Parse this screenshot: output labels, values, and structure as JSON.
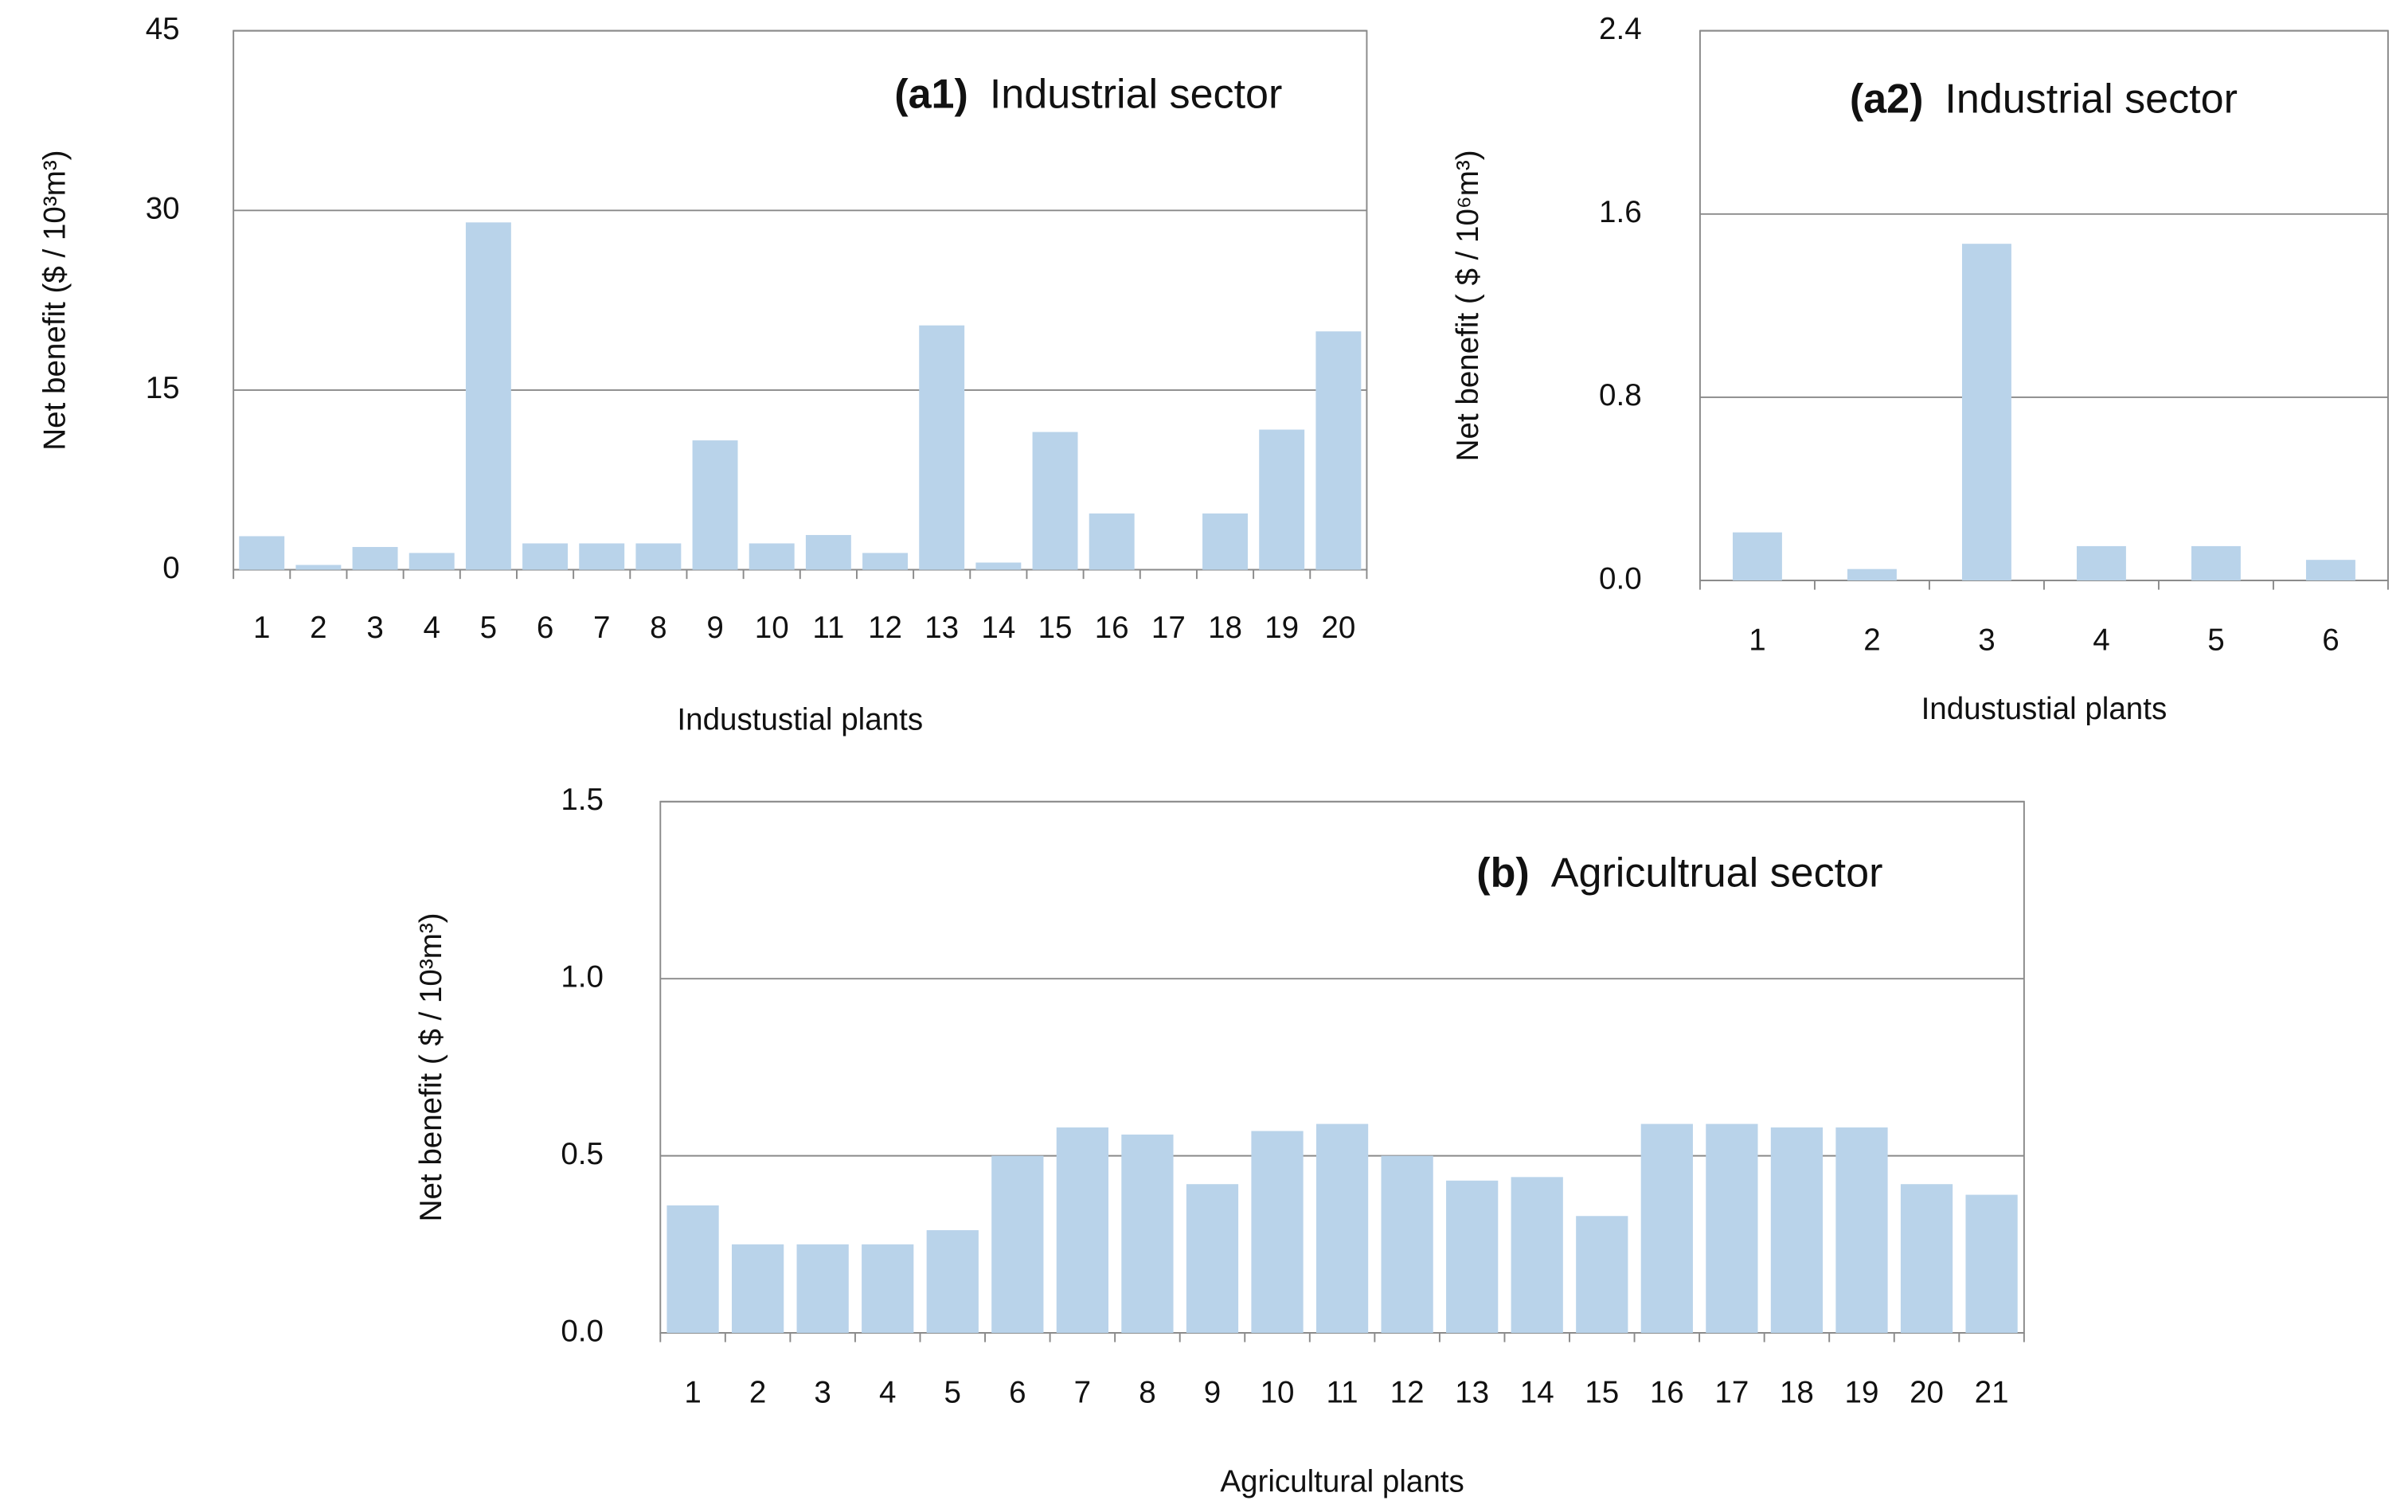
{
  "chart_data": [
    {
      "type": "bar",
      "panel_label": "(a1)",
      "title": "Industrial sector",
      "x_label": "Industustial plants",
      "y_label": "Net benefit ($ / 10³m³)",
      "categories": [
        "1",
        "2",
        "3",
        "4",
        "5",
        "6",
        "7",
        "8",
        "9",
        "10",
        "11",
        "12",
        "13",
        "14",
        "15",
        "16",
        "17",
        "18",
        "19",
        "20"
      ],
      "values": [
        2.8,
        0.4,
        1.9,
        1.4,
        29.0,
        2.2,
        2.2,
        2.2,
        10.8,
        2.2,
        2.9,
        1.4,
        20.4,
        0.6,
        11.5,
        4.7,
        0,
        4.7,
        11.7,
        19.9
      ],
      "color": "#b9d3ea",
      "ylim": [
        0,
        45
      ],
      "yticks": [
        0,
        15,
        30,
        45
      ],
      "grid": true
    },
    {
      "type": "bar",
      "panel_label": "(a2)",
      "title": "Industrial sector",
      "x_label": "Industustial plants",
      "y_label": "Net benefit ( $ / 10⁶m³)",
      "categories": [
        "1",
        "2",
        "3",
        "4",
        "5",
        "6"
      ],
      "values": [
        0.21,
        0.05,
        1.47,
        0.15,
        0.15,
        0.09
      ],
      "color": "#b9d3ea",
      "ylim": [
        0,
        2.4
      ],
      "yticks": [
        {
          "value": 0,
          "label": "0.0"
        },
        0.8,
        1.6,
        2.4
      ],
      "grid": true
    },
    {
      "type": "bar",
      "panel_label": "(b)",
      "title": "Agricultrual sector",
      "x_label": "Agricultural plants",
      "y_label": "Net benefit ( $ / 10³m³)",
      "categories": [
        "1",
        "2",
        "3",
        "4",
        "5",
        "6",
        "7",
        "8",
        "9",
        "10",
        "11",
        "12",
        "13",
        "14",
        "15",
        "16",
        "17",
        "18",
        "19",
        "20",
        "21"
      ],
      "values": [
        0.36,
        0.25,
        0.25,
        0.25,
        0.29,
        0.5,
        0.58,
        0.56,
        0.42,
        0.57,
        0.59,
        0.5,
        0.43,
        0.44,
        0.33,
        0.59,
        0.59,
        0.58,
        0.58,
        0.42,
        0.39
      ],
      "color": "#b9d3ea",
      "ylim": [
        0,
        1.5
      ],
      "yticks": [
        {
          "value": 0,
          "label": "0.0"
        },
        0.5,
        {
          "value": 1,
          "label": "1.0"
        },
        1.5
      ],
      "grid": true
    }
  ]
}
